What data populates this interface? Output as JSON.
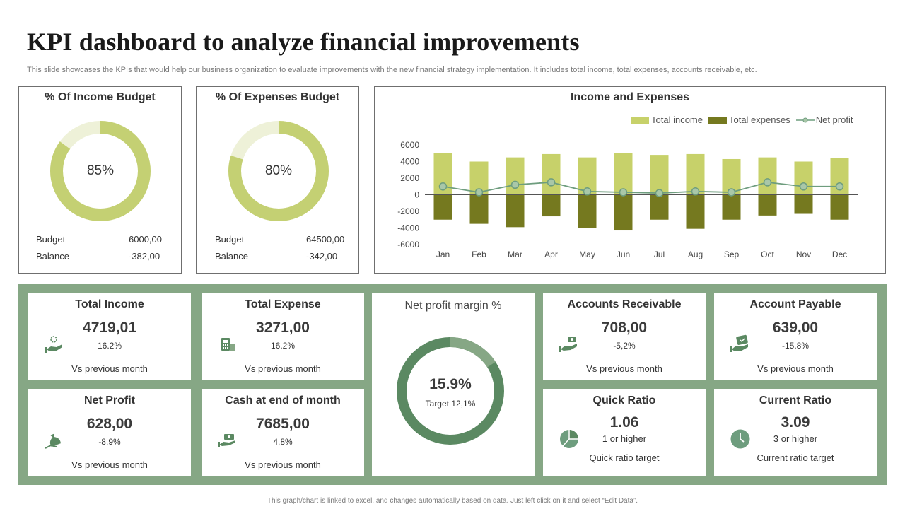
{
  "header": {
    "title": "KPI dashboard to analyze financial improvements",
    "subtitle": "This slide showcases the KPIs that would help our business organization to evaluate improvements with the new financial strategy implementation. It includes total income, total expenses, accounts receivable, etc."
  },
  "colors": {
    "income": "#c7d16a",
    "expenses": "#75791f",
    "net_profit": "#6e9d7e",
    "donut_light": "#c4d073",
    "donut_pale": "#eef1d8",
    "green_bg": "#86a785",
    "margin_dark": "#5b8962",
    "margin_light": "#86a785"
  },
  "income_budget": {
    "title": "% Of Income Budget",
    "percent_label": "85%",
    "percent": 85,
    "budget_label": "Budget",
    "budget_value": "6000,00",
    "balance_label": "Balance",
    "balance_value": "-382,00"
  },
  "expenses_budget": {
    "title": "% Of Expenses Budget",
    "percent_label": "80%",
    "percent": 80,
    "budget_label": "Budget",
    "budget_value": "64500,00",
    "balance_label": "Balance",
    "balance_value": "-342,00"
  },
  "chart_data": {
    "type": "bar",
    "title": "Income and Expenses",
    "categories": [
      "Jan",
      "Feb",
      "Mar",
      "Apr",
      "May",
      "Jun",
      "Jul",
      "Aug",
      "Sep",
      "Oct",
      "Nov",
      "Dec"
    ],
    "series": [
      {
        "name": "Total income",
        "type": "bar",
        "values": [
          5000,
          4000,
          4500,
          4900,
          4500,
          5000,
          4800,
          4900,
          4300,
          4500,
          4000,
          4400
        ]
      },
      {
        "name": "Total expenses",
        "type": "bar",
        "values": [
          -3000,
          -3500,
          -3900,
          -2600,
          -4000,
          -4300,
          -3000,
          -4100,
          -3000,
          -2500,
          -2300,
          -3000
        ]
      },
      {
        "name": "Net profit",
        "type": "line",
        "values": [
          1000,
          300,
          1200,
          1500,
          400,
          300,
          200,
          400,
          300,
          1500,
          1000,
          1000
        ]
      }
    ],
    "ylim": [
      -6000,
      6000
    ],
    "yticks": [
      6000,
      4000,
      2000,
      0,
      -2000,
      -4000,
      -6000
    ],
    "legend": "top-right"
  },
  "cards": {
    "total_income": {
      "title": "Total Income",
      "value": "4719,01",
      "pct": "16.2%",
      "vs": "Vs previous  month"
    },
    "total_expense": {
      "title": "Total Expense",
      "value": "3271,00",
      "pct": "16.2%",
      "vs": "Vs previous  month"
    },
    "net_profit": {
      "title": "Net Profit",
      "value": "628,00",
      "pct": "-8,9%",
      "vs": "Vs previous  month"
    },
    "cash_end": {
      "title": "Cash at end of month",
      "value": "7685,00",
      "pct": "4,8%",
      "vs": "Vs previous  month"
    },
    "accounts_receivable": {
      "title": "Accounts Receivable",
      "value": "708,00",
      "pct": "-5,2%",
      "vs": "Vs previous  month"
    },
    "account_payable": {
      "title": "Account Payable",
      "value": "639,00",
      "pct": "-15.8%",
      "vs": "Vs previous  month"
    },
    "quick_ratio": {
      "title": "Quick Ratio",
      "value": "1.06",
      "sub": "1 or higher",
      "target": "Quick ratio target"
    },
    "current_ratio": {
      "title": "Current Ratio",
      "value": "3.09",
      "sub": "3 or higher",
      "target": "Current  ratio target"
    }
  },
  "net_profit_margin": {
    "title": "Net profit margin %",
    "value": "15.9%",
    "target": "Target  12,1%",
    "percent": 15.9
  },
  "footer": "This graph/chart is linked to excel, and changes automatically based on data. Just left click on it and select “Edit Data”."
}
